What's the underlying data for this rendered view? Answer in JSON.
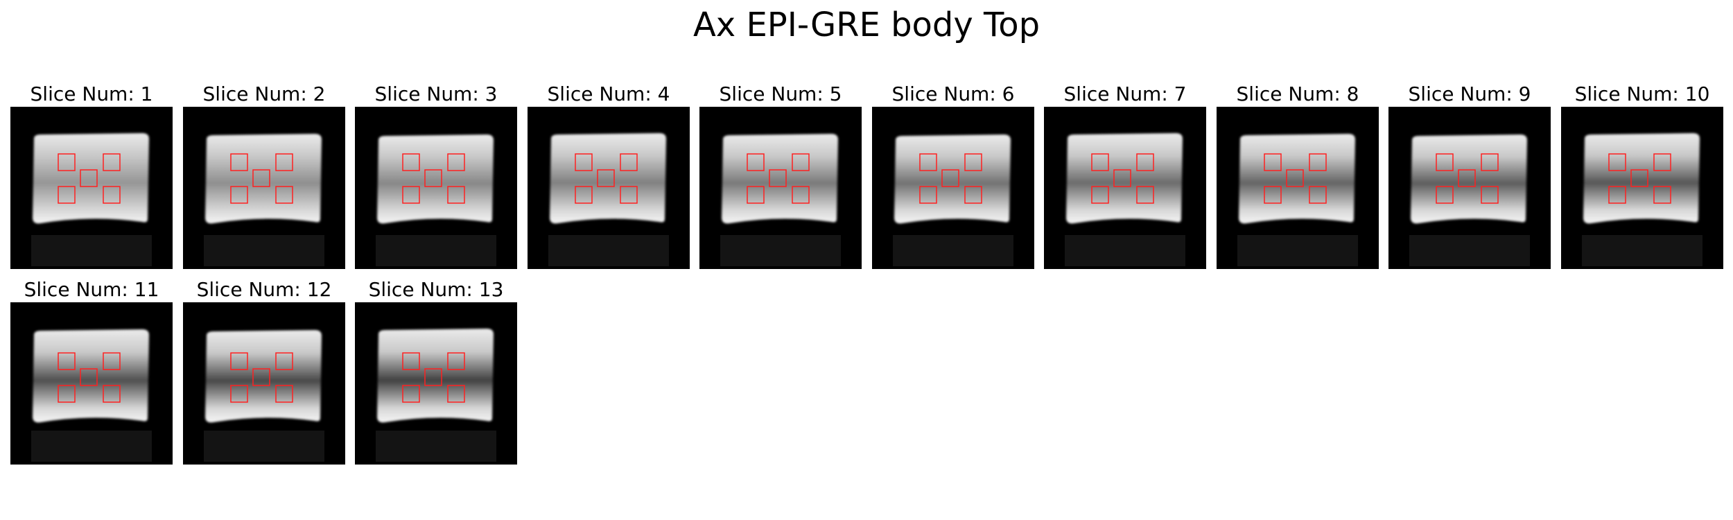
{
  "figure": {
    "title": "Ax EPI-GRE body Top"
  },
  "colors": {
    "roi": "#ff2020",
    "background": "#000000",
    "phantom": "#d8d8d8"
  },
  "slices": [
    {
      "title": "Slice Num: 1",
      "number": 1
    },
    {
      "title": "Slice Num: 2",
      "number": 2
    },
    {
      "title": "Slice Num: 3",
      "number": 3
    },
    {
      "title": "Slice Num: 4",
      "number": 4
    },
    {
      "title": "Slice Num: 5",
      "number": 5
    },
    {
      "title": "Slice Num: 6",
      "number": 6
    },
    {
      "title": "Slice Num: 7",
      "number": 7
    },
    {
      "title": "Slice Num: 8",
      "number": 8
    },
    {
      "title": "Slice Num: 9",
      "number": 9
    },
    {
      "title": "Slice Num: 10",
      "number": 10
    },
    {
      "title": "Slice Num: 11",
      "number": 11
    },
    {
      "title": "Slice Num: 12",
      "number": 12
    },
    {
      "title": "Slice Num: 13",
      "number": 13
    }
  ]
}
